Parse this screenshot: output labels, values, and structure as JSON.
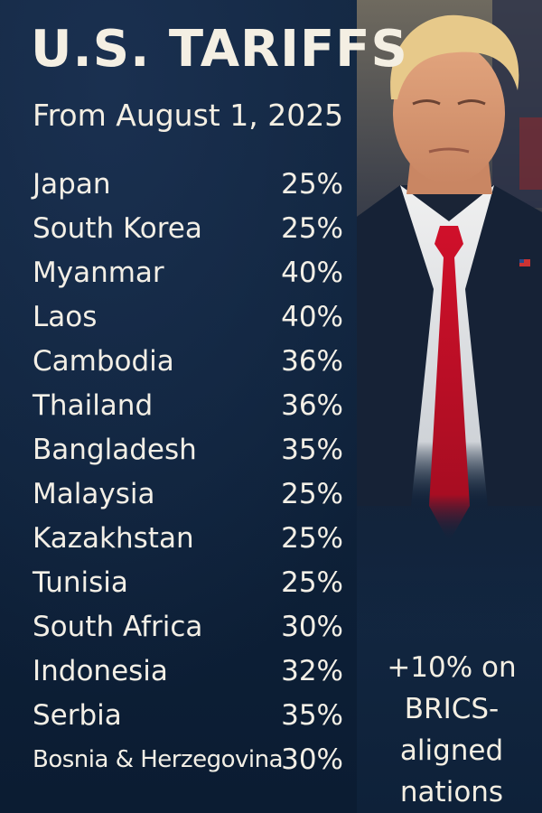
{
  "title": "U.S. TARIFFS",
  "subtitle": "From August 1, 2025",
  "tariffs": [
    {
      "country": "Japan",
      "rate": "25%"
    },
    {
      "country": "South Korea",
      "rate": "25%"
    },
    {
      "country": "Myanmar",
      "rate": "40%"
    },
    {
      "country": "Laos",
      "rate": "40%"
    },
    {
      "country": "Cambodia",
      "rate": "36%"
    },
    {
      "country": "Thailand",
      "rate": "36%"
    },
    {
      "country": "Bangladesh",
      "rate": "35%"
    },
    {
      "country": "Malaysia",
      "rate": "25%"
    },
    {
      "country": "Kazakhstan",
      "rate": "25%"
    },
    {
      "country": "Tunisia",
      "rate": "25%"
    },
    {
      "country": "South Africa",
      "rate": "30%"
    },
    {
      "country": "Indonesia",
      "rate": "32%"
    },
    {
      "country": "Serbia",
      "rate": "35%"
    },
    {
      "country": "Bosnia & Herzegovina",
      "rate": "30%"
    }
  ],
  "note": {
    "line1": "+10% on",
    "line2": "BRICS-",
    "line3": "aligned",
    "line4": "nations"
  },
  "colors": {
    "background": "#0f2440",
    "text": "#f4efe3",
    "tie": "#c8102e"
  }
}
